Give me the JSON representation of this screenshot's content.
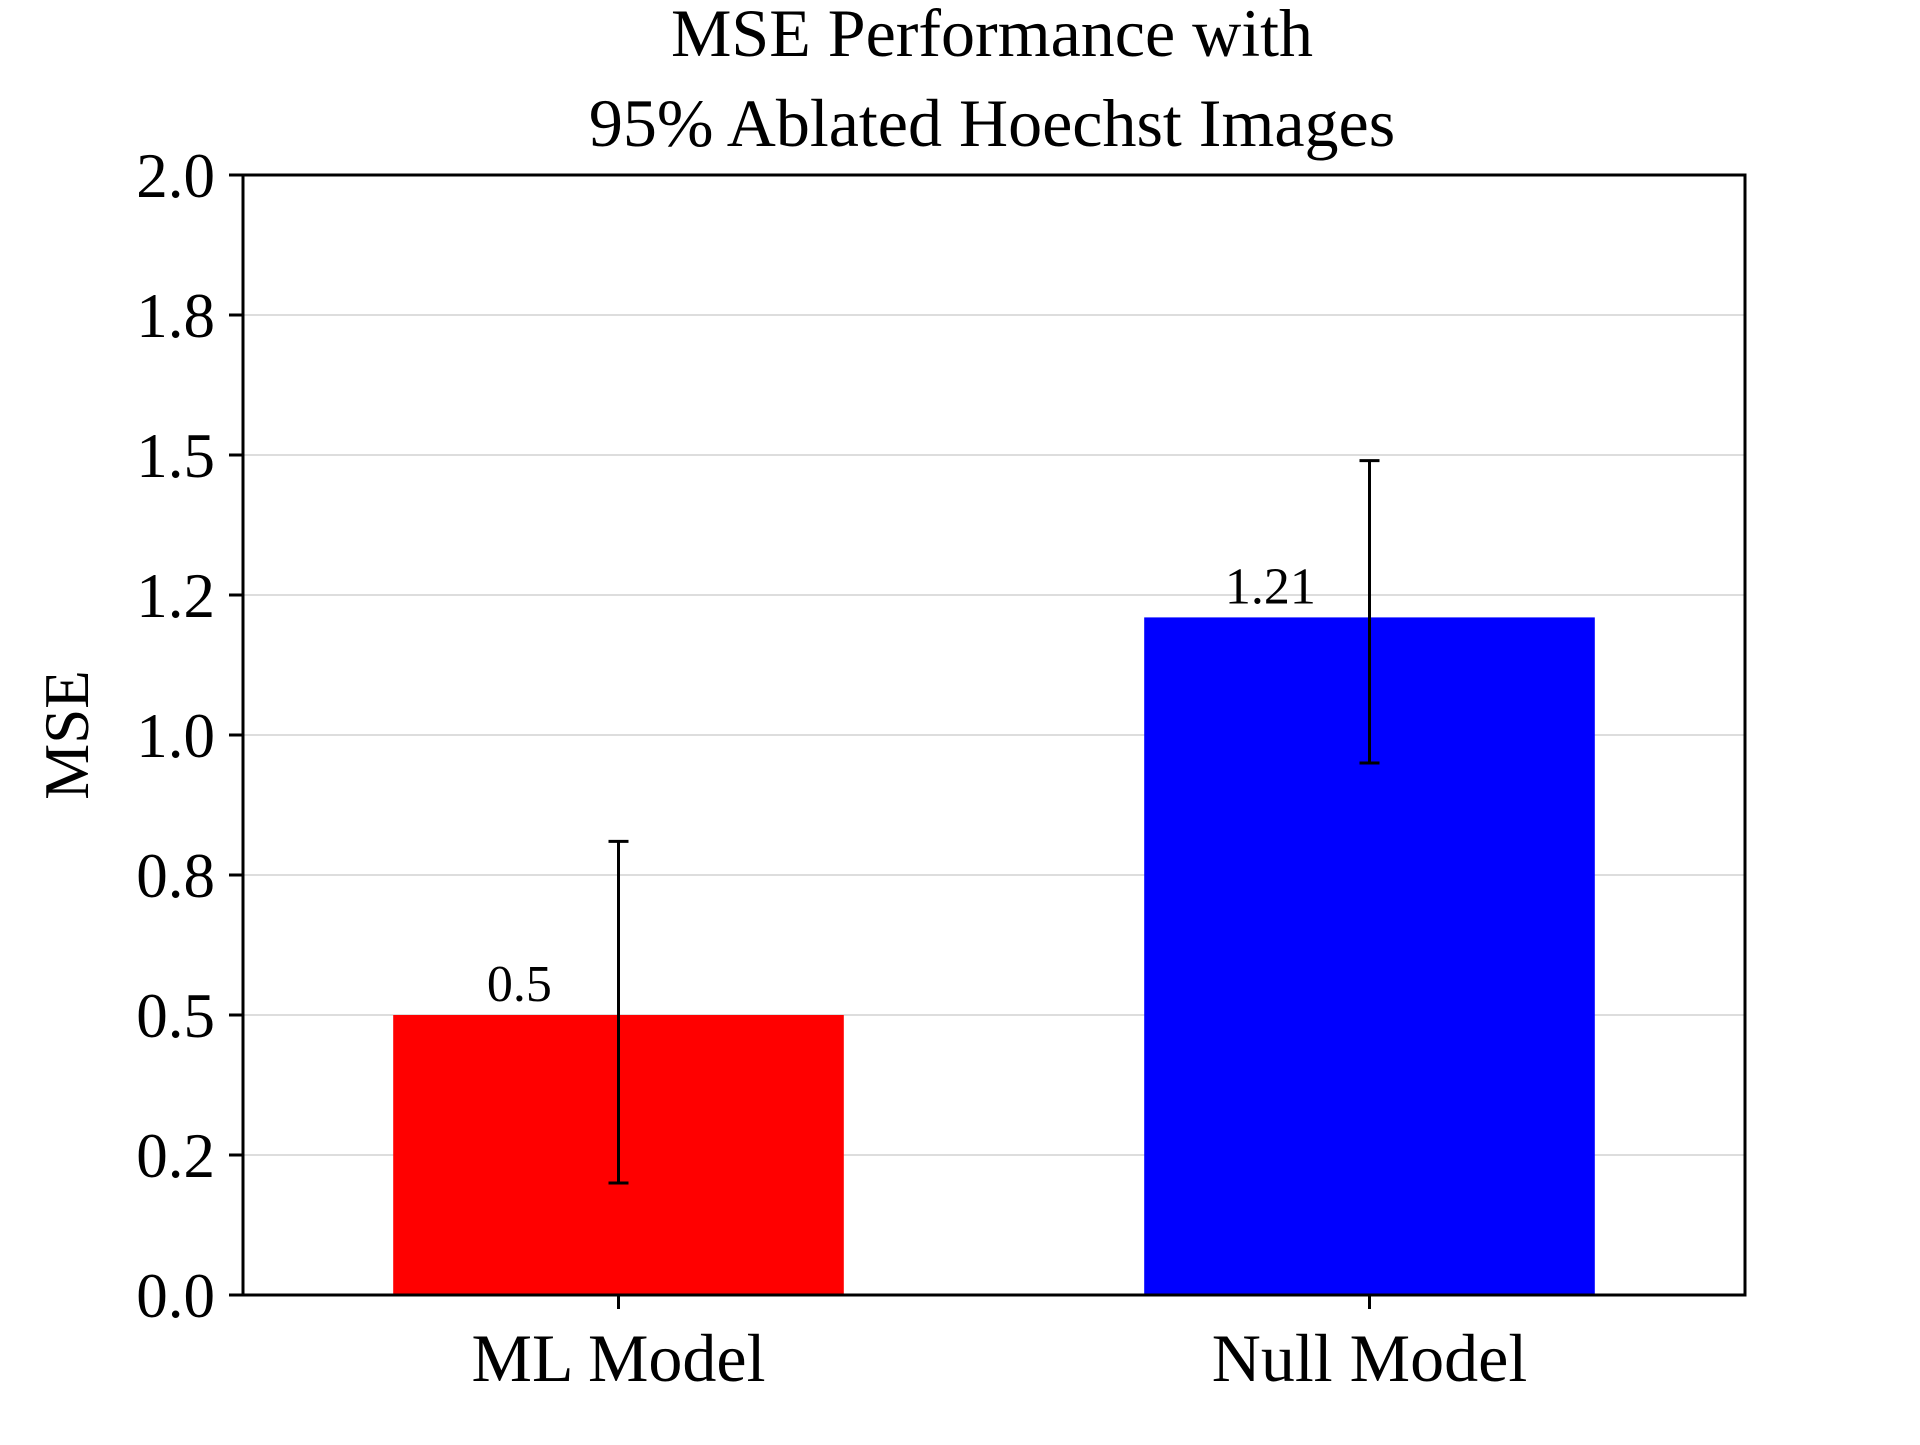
{
  "chart_data": {
    "type": "bar",
    "title_lines": [
      "MSE Performance with",
      "95% Ablated Hoechst Images"
    ],
    "xlabel": "",
    "ylabel": "MSE",
    "categories": [
      "ML Model",
      "Null Model"
    ],
    "values": [
      0.5,
      1.21
    ],
    "error_bars": [
      {
        "low": 0.2,
        "high": 0.81
      },
      {
        "low": 0.95,
        "high": 1.49
      }
    ],
    "data_labels": [
      "0.5",
      "1.21"
    ],
    "colors": [
      "#ff0000",
      "#0000ff"
    ],
    "ylim": [
      0.0,
      2.0
    ],
    "yticks": [
      0.0,
      0.25,
      0.5,
      0.75,
      1.0,
      1.25,
      1.5,
      1.75,
      2.0
    ],
    "ytick_labels": [
      "0.0",
      "0.2",
      "0.5",
      "0.8",
      "1.0",
      "1.2",
      "1.5",
      "1.8",
      "2.0"
    ],
    "grid": "horizontal",
    "legend": "none"
  }
}
